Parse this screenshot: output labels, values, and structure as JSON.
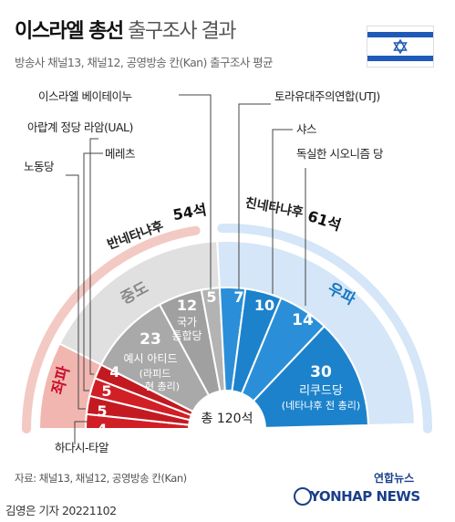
{
  "header": {
    "title_bold": "이스라엘 총선",
    "title_rest": " 출구조사 결과",
    "subtitle": "방송사 채널13, 채널12, 공영방송 칸(Kan) 출구조사 평균"
  },
  "chart_data": {
    "type": "semicircle-parliament",
    "total_label": "총 120석",
    "total": 120,
    "blocs": [
      {
        "name": "반네타냐후",
        "seats_label": "54석",
        "seats": 54,
        "color": "#f3c9c4"
      },
      {
        "name": "친네타냐후",
        "seats_label": "61석",
        "seats": 61,
        "color": "#d4e6f7"
      }
    ],
    "groups": [
      {
        "name": "좌파",
        "color": "#f2b6b0",
        "text_color": "#c8102e"
      },
      {
        "name": "중도",
        "color": "#e0e0e0",
        "text_color": "#888888"
      },
      {
        "name": "우파",
        "color": "#d4e6f7",
        "text_color": "#1a78c2"
      }
    ],
    "parties": [
      {
        "name": "하다시-타알",
        "seats": 4,
        "group": "좌파",
        "color": "#d11f26"
      },
      {
        "name": "노동당",
        "seats": 5,
        "group": "좌파",
        "color": "#c31a21"
      },
      {
        "name": "메레츠",
        "seats": 5,
        "group": "좌파",
        "color": "#d11f26"
      },
      {
        "name": "아랍계 정당 라암(UAL)",
        "seats": 4,
        "group": "좌파",
        "color": "#c31a21"
      },
      {
        "name": "예시 아티드",
        "seats": 23,
        "group": "중도",
        "color": "#a9a9a9",
        "sublabel1": "(라피드",
        "sublabel2": "현 총리)"
      },
      {
        "name": "국가통합당",
        "seats": 12,
        "group": "중도",
        "color": "#a0a0a0",
        "inner1": "국가",
        "inner2": "통합당"
      },
      {
        "name": "이스라엘 베이테이누",
        "seats": 5,
        "group": "중도",
        "color": "#b3b3b3"
      },
      {
        "name": "토라유대주의연합(UTJ)",
        "seats": 7,
        "group": "우파",
        "color": "#2a8fd8"
      },
      {
        "name": "샤스",
        "seats": 10,
        "group": "우파",
        "color": "#1d82cc"
      },
      {
        "name": "독실한 시오니즘 당",
        "seats": 14,
        "group": "우파",
        "color": "#2a8fd8"
      },
      {
        "name": "리쿠드당",
        "seats": 30,
        "group": "우파",
        "color": "#1d82cc",
        "sublabel1": "(네타냐후 전 총리)"
      }
    ]
  },
  "footer": {
    "source": "자료: 채널13, 채널12, 공영방송 칸(Kan)",
    "byline": "김영은 기자  20221102",
    "logo_top": "연합뉴스",
    "logo_bottom": "YONHAP NEWS"
  },
  "colors": {
    "left_dark": "#d11f26",
    "center_gray": "#a9a9a9",
    "right_blue": "#1d82cc"
  }
}
